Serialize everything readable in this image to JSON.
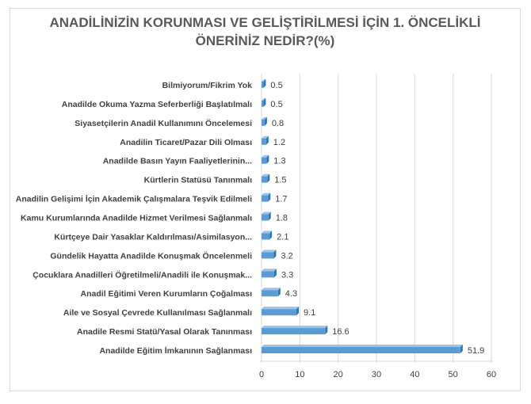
{
  "chart_data": {
    "type": "bar",
    "orientation": "horizontal",
    "title_lines": [
      "ANADİLİNİZİN KORUNMASI VE GELİŞTİRİLMESİ İÇİN 1. ÖNCELİKLİ",
      "ÖNERİNİZ NEDİR?(%)"
    ],
    "categories": [
      "Bilmiyorum/Fikrim Yok",
      "Anadilde Okuma Yazma Seferberliği Başlatılmalı",
      "Siyasetçilerin Anadil Kullanımını Öncelemesi",
      "Anadilin Ticaret/Pazar Dili Olması",
      "Anadilde Basın Yayın Faaliyetlerinin...",
      "Kürtlerin Statüsü Tanınmalı",
      "Anadilin Gelişimi İçin Akademik Çalışmalara Teşvik Edilmeli",
      "Kamu Kurumlarında Anadilde Hizmet Verilmesi Sağlanmalı",
      "Kürtçeye Dair Yasaklar Kaldırılması/Asimilasyon...",
      "Gündelik Hayatta Anadilde Konuşmak Öncelenmeli",
      "Çocuklara Anadilleri Öğretilmeli/Anadili ile Konuşmak...",
      "Anadil Eğitimi Veren Kurumların Çoğalması",
      "Aile ve Sosyal Çevrede Kullanılması Sağlanmalı",
      "Anadile Resmi Statü/Yasal Olarak Tanınması",
      "Anadilde Eğitim İmkanının Sağlanması"
    ],
    "values": [
      0.5,
      0.5,
      0.8,
      1.2,
      1.3,
      1.5,
      1.7,
      1.8,
      2.1,
      3.2,
      3.3,
      4.3,
      9.1,
      16.6,
      51.9
    ],
    "value_labels": [
      "0.5",
      "0.5",
      "0.8",
      "1.2",
      "1.3",
      "1.5",
      "1.7",
      "1.8",
      "2.1",
      "3.2",
      "3.3",
      "4.3",
      "9.1",
      "16.6",
      "51.9"
    ],
    "xlim": [
      0,
      60
    ],
    "xticks": [
      0,
      10,
      20,
      30,
      40,
      50,
      60
    ],
    "xtick_labels": [
      "0",
      "10",
      "20",
      "30",
      "40",
      "50",
      "60"
    ],
    "grid": true,
    "legend": "none",
    "colors": {
      "bar_front": "#5b9bd5",
      "bar_top": "#9dc3e6",
      "bar_side": "#2e75b6",
      "grid": "#d9d9d9",
      "text": "#404040",
      "title": "#595959"
    }
  }
}
